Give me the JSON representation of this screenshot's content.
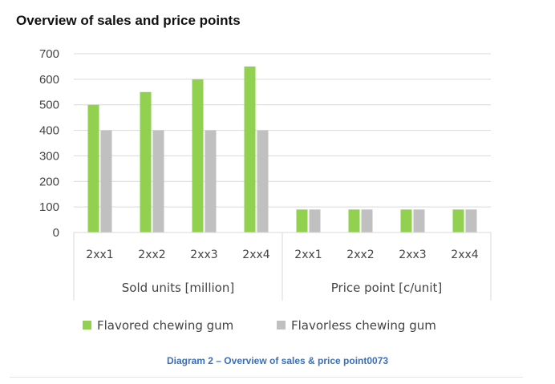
{
  "chart_data": {
    "type": "bar",
    "title": "Overview of sales and price points",
    "caption": "Diagram 2 – Overview of sales & price point0073",
    "groups": [
      {
        "label": "Sold units [million]",
        "categories": [
          "2xx1",
          "2xx2",
          "2xx3",
          "2xx4"
        ]
      },
      {
        "label": "Price point [c/unit]",
        "categories": [
          "2xx1",
          "2xx2",
          "2xx3",
          "2xx4"
        ]
      }
    ],
    "series": [
      {
        "name": "Flavored chewing gum",
        "color": "#92d050",
        "values": [
          500,
          550,
          600,
          650,
          90,
          90,
          90,
          90
        ]
      },
      {
        "name": "Flavorless chewing gum",
        "color": "#c0c0c0",
        "values": [
          400,
          400,
          400,
          400,
          90,
          90,
          90,
          90
        ]
      }
    ],
    "ylim": [
      0,
      700
    ],
    "yticks": [
      "0",
      "100",
      "200",
      "300",
      "400",
      "500",
      "600",
      "700"
    ],
    "grid": true,
    "legend_position": "bottom"
  }
}
